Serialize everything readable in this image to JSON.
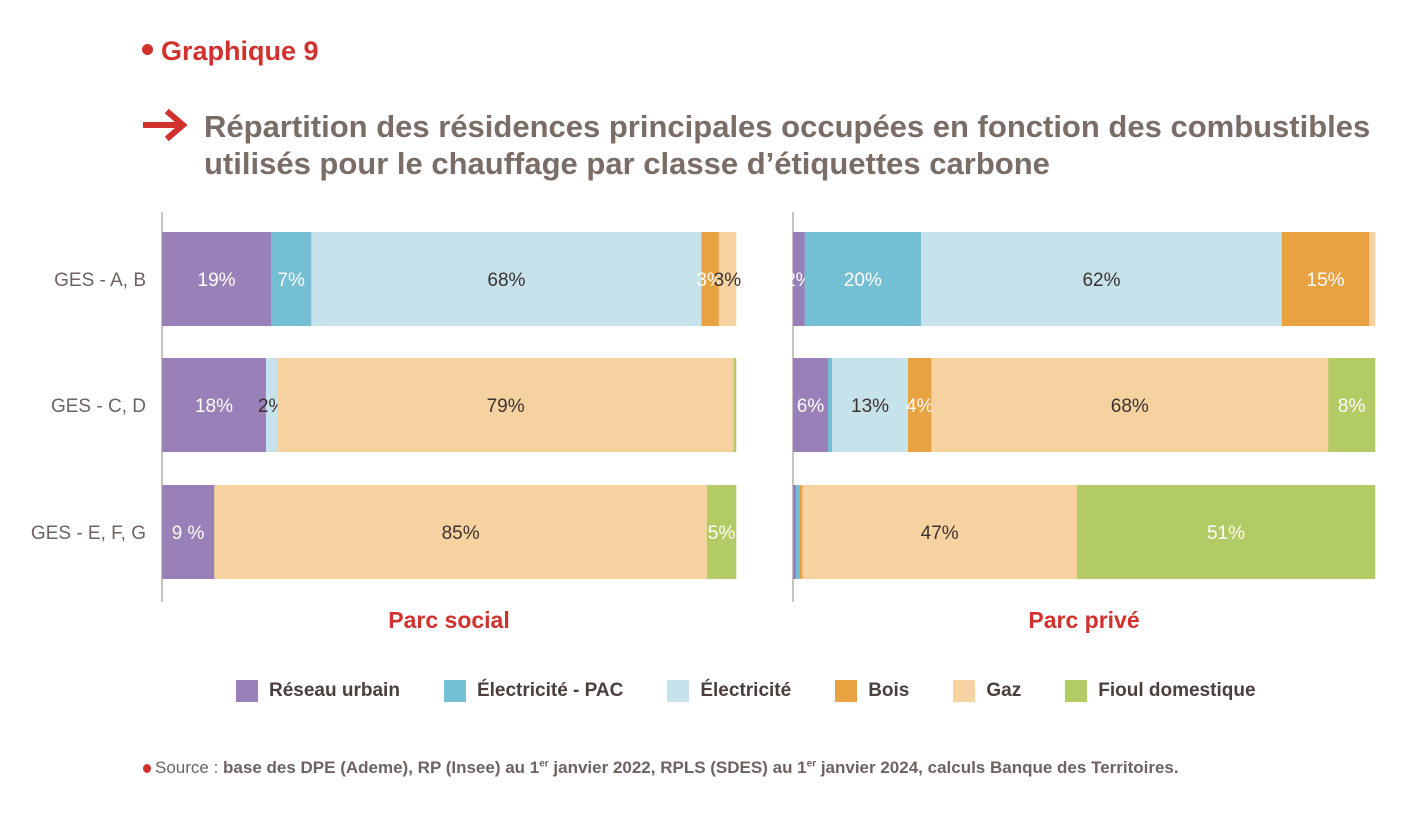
{
  "kicker": "Graphique 9",
  "title_line1": "Répartition des résidences principales occupées en fonction des combustibles",
  "title_line2": "utilisés pour le chauffage par classe d’étiquettes carbone",
  "source": {
    "label": "Source :",
    "text_a": "base des DPE (Ademe), RP (Insee) au 1",
    "sup_a": "er",
    "text_b": " janvier 2022, RPLS (SDES) au 1",
    "sup_b": "er",
    "text_c": " janvier 2024, calculs Banque des Territoires."
  },
  "colors": {
    "accent": "#d2322d",
    "text": "#7a6d67"
  },
  "chart_data": {
    "type": "bar",
    "orientation": "horizontal-stacked-100",
    "categories": [
      "GES - A, B",
      "GES - C, D",
      "GES - E, F, G"
    ],
    "legend_position": "bottom",
    "series_meta": [
      {
        "name": "Réseau urbain",
        "color": "#9a80b8"
      },
      {
        "name": "Électricité - PAC",
        "color": "#74bfd4"
      },
      {
        "name": "Électricité",
        "color": "#c6e2eb"
      },
      {
        "name": "Bois",
        "color": "#e9a241"
      },
      {
        "name": "Gaz",
        "color": "#f5d2a0"
      },
      {
        "name": "Fioul domestique",
        "color": "#b3cb64"
      }
    ],
    "panels": [
      {
        "title": "Parc social",
        "rows": [
          {
            "category": "GES - A, B",
            "values": [
              19,
              7,
              68,
              3,
              3,
              0
            ],
            "labels": [
              "19%",
              "7%",
              "68%",
              "3%",
              "3%",
              ""
            ]
          },
          {
            "category": "GES - C, D",
            "values": [
              18,
              0,
              2,
              0,
              79,
              0.4
            ],
            "labels": [
              "18%",
              "",
              "2%",
              "",
              "79%",
              ""
            ]
          },
          {
            "category": "GES - E, F, G",
            "values": [
              9,
              0,
              0,
              0,
              85,
              5
            ],
            "labels": [
              "9 %",
              "",
              "",
              "",
              "85%",
              "5%"
            ]
          }
        ]
      },
      {
        "title": "Parc privé",
        "rows": [
          {
            "category": "GES - A, B",
            "values": [
              2,
              20,
              62,
              15,
              1,
              0
            ],
            "labels": [
              "2%",
              "20%",
              "62%",
              "15%",
              "",
              ""
            ]
          },
          {
            "category": "GES - C, D",
            "values": [
              6,
              0.7,
              13,
              4,
              68,
              8
            ],
            "labels": [
              "6%",
              "",
              "13%",
              "4%",
              "68%",
              "8%"
            ]
          },
          {
            "category": "GES - E, F, G",
            "values": [
              0.5,
              0.7,
              0,
              0.4,
              47,
              51
            ],
            "labels": [
              "",
              "",
              "",
              "",
              "47%",
              "51%"
            ]
          }
        ]
      }
    ]
  }
}
